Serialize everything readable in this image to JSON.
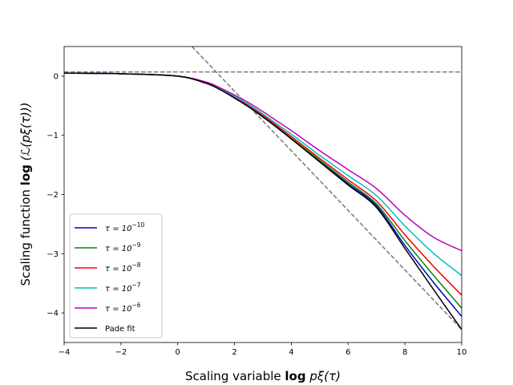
{
  "chart_data": {
    "type": "line",
    "title": "",
    "xlabel": {
      "prefix": "Scaling variable ",
      "bold": "log",
      "math": " pξ(τ)"
    },
    "ylabel": {
      "prefix": "Scaling function ",
      "bold": "log",
      "math": " (ℒ(pξ(τ)))"
    },
    "xlim": [
      -4,
      10
    ],
    "ylim": [
      -4.5,
      0.5
    ],
    "xticks": [
      -4,
      -2,
      0,
      2,
      4,
      6,
      8,
      10
    ],
    "yticks": [
      -4,
      -3,
      -2,
      -1,
      0
    ],
    "xtick_labels": [
      "−4",
      "−2",
      "0",
      "2",
      "4",
      "6",
      "8",
      "10"
    ],
    "ytick_labels": [
      "−4",
      "−3",
      "−2",
      "−1",
      "0"
    ],
    "grid": false,
    "legend_position": "lower-left",
    "series": [
      {
        "name": "τ = 10^-10",
        "label_base": "τ = 10",
        "label_exp": "−10",
        "color": "#0000cc",
        "x": [
          -4,
          -2,
          0,
          1,
          1.5,
          2,
          2.5,
          3,
          3.5,
          4,
          5,
          6,
          7,
          8,
          9,
          10
        ],
        "y": [
          0.05,
          0.04,
          0.0,
          -0.12,
          -0.23,
          -0.37,
          -0.52,
          -0.69,
          -0.87,
          -1.06,
          -1.44,
          -1.82,
          -2.19,
          -2.86,
          -3.48,
          -4.06
        ]
      },
      {
        "name": "τ = 10^-9",
        "label_base": "τ = 10",
        "label_exp": "−9",
        "color": "#008800",
        "x": [
          -4,
          -2,
          0,
          1,
          1.5,
          2,
          2.5,
          3,
          3.5,
          4,
          5,
          6,
          7,
          8,
          9,
          10
        ],
        "y": [
          0.05,
          0.04,
          0.0,
          -0.12,
          -0.23,
          -0.36,
          -0.51,
          -0.68,
          -0.86,
          -1.05,
          -1.42,
          -1.79,
          -2.16,
          -2.78,
          -3.36,
          -3.92
        ]
      },
      {
        "name": "τ = 10^-8",
        "label_base": "τ = 10",
        "label_exp": "−8",
        "color": "#ff0000",
        "x": [
          -4,
          -2,
          0,
          1,
          1.5,
          2,
          2.5,
          3,
          3.5,
          4,
          5,
          6,
          7,
          8,
          9,
          10
        ],
        "y": [
          0.05,
          0.04,
          0.0,
          -0.12,
          -0.22,
          -0.35,
          -0.5,
          -0.66,
          -0.84,
          -1.02,
          -1.39,
          -1.75,
          -2.11,
          -2.68,
          -3.21,
          -3.7
        ]
      },
      {
        "name": "τ = 10^-7",
        "label_base": "τ = 10",
        "label_exp": "−7",
        "color": "#00bfbf",
        "x": [
          -4,
          -2,
          0,
          1,
          1.5,
          2,
          2.5,
          3,
          3.5,
          4,
          5,
          6,
          7,
          8,
          9,
          10
        ],
        "y": [
          0.05,
          0.04,
          0.0,
          -0.11,
          -0.21,
          -0.34,
          -0.48,
          -0.64,
          -0.81,
          -0.98,
          -1.34,
          -1.68,
          -2.02,
          -2.53,
          -2.99,
          -3.37
        ]
      },
      {
        "name": "τ = 10^-6",
        "label_base": "τ = 10",
        "label_exp": "−6",
        "color": "#bf00bf",
        "x": [
          -4,
          -2,
          0,
          1,
          1.5,
          2,
          2.5,
          3,
          3.5,
          4,
          5,
          6,
          7,
          8,
          9,
          10
        ],
        "y": [
          0.05,
          0.04,
          0.0,
          -0.1,
          -0.2,
          -0.32,
          -0.45,
          -0.6,
          -0.76,
          -0.92,
          -1.26,
          -1.58,
          -1.9,
          -2.35,
          -2.72,
          -2.95
        ]
      },
      {
        "name": "Pade fit",
        "label_base": "Pade fit",
        "label_exp": "",
        "color": "#000000",
        "x": [
          -4,
          -2,
          0,
          1,
          1.5,
          2,
          2.5,
          3,
          3.5,
          4,
          5,
          6,
          7,
          8,
          9,
          10
        ],
        "y": [
          0.05,
          0.04,
          0.0,
          -0.12,
          -0.23,
          -0.37,
          -0.52,
          -0.69,
          -0.87,
          -1.06,
          -1.45,
          -1.84,
          -2.22,
          -2.91,
          -3.6,
          -4.28
        ]
      }
    ],
    "reference_lines": [
      {
        "name": "horizontal-asymptote",
        "color": "#808080",
        "style": "dashed",
        "x": [
          -4,
          10
        ],
        "y": [
          0.07,
          0.07
        ]
      },
      {
        "name": "power-law-asymptote",
        "color": "#808080",
        "style": "dashed",
        "x": [
          0.5,
          10
        ],
        "y": [
          0.5,
          -4.28
        ]
      }
    ]
  }
}
